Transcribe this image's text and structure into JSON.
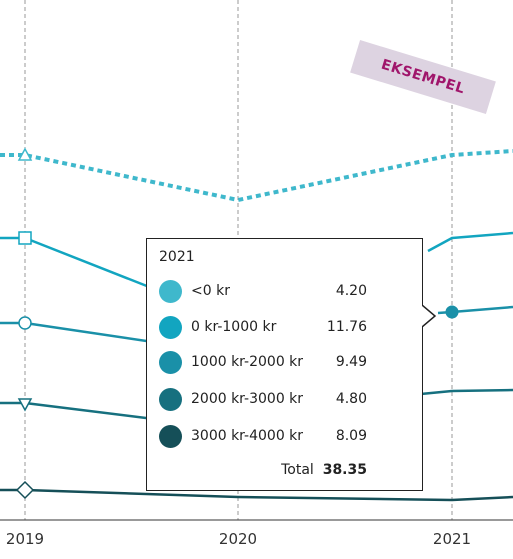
{
  "chart_data": {
    "type": "line",
    "x": [
      "2019",
      "2020",
      "2021"
    ],
    "series": [
      {
        "name": "<0 kr",
        "values": [
          null,
          null,
          4.2
        ],
        "color": "#3fb8cc",
        "style": "dotted",
        "marker": "triangle-up"
      },
      {
        "name": "0 kr-1000 kr",
        "values": [
          null,
          null,
          11.76
        ],
        "color": "#12a5c0",
        "style": "solid",
        "marker": "square"
      },
      {
        "name": "1000 kr-2000 kr",
        "values": [
          null,
          null,
          9.49
        ],
        "color": "#1a90a8",
        "style": "solid",
        "marker": "circle"
      },
      {
        "name": "2000 kr-3000 kr",
        "values": [
          null,
          null,
          4.8
        ],
        "color": "#16707f",
        "style": "solid",
        "marker": "triangle-down"
      },
      {
        "name": "3000 kr-4000 kr",
        "values": [
          null,
          null,
          8.09
        ],
        "color": "#154f58",
        "style": "solid",
        "marker": "diamond"
      }
    ],
    "grid": "vertical-dashed",
    "legend": "none"
  },
  "tooltip": {
    "title": "2021",
    "rows": [
      {
        "label": "<0 kr",
        "value": "4.20",
        "color": "#3fb8cc"
      },
      {
        "label": "0 kr-1000 kr",
        "value": "11.76",
        "color": "#12a5c0"
      },
      {
        "label": "1000 kr-2000 kr",
        "value": "9.49",
        "color": "#1a90a8"
      },
      {
        "label": "2000 kr-3000 kr",
        "value": "4.80",
        "color": "#16707f"
      },
      {
        "label": "3000 kr-4000 kr",
        "value": "8.09",
        "color": "#154f58"
      }
    ],
    "total_label": "Total",
    "total_value": "38.35"
  },
  "watermark": {
    "text": "EKSEMPEL"
  }
}
